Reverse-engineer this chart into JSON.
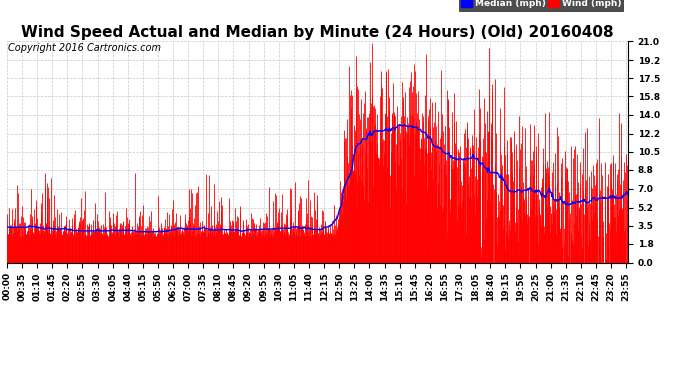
{
  "title": "Wind Speed Actual and Median by Minute (24 Hours) (Old) 20160408",
  "copyright": "Copyright 2016 Cartronics.com",
  "legend_median_label": "Median (mph)",
  "legend_wind_label": "Wind (mph)",
  "legend_median_color": "#0000ff",
  "legend_wind_color": "#ff0000",
  "wind_color": "#ff0000",
  "median_color": "#0000ff",
  "background_color": "#ffffff",
  "grid_color": "#c8c8c8",
  "title_fontsize": 11,
  "copyright_fontsize": 7,
  "ytick_labels": [
    "0.0",
    "1.8",
    "3.5",
    "5.2",
    "7.0",
    "8.8",
    "10.5",
    "12.2",
    "14.0",
    "15.8",
    "17.5",
    "19.2",
    "21.0"
  ],
  "ytick_values": [
    0.0,
    1.8,
    3.5,
    5.2,
    7.0,
    8.8,
    10.5,
    12.2,
    14.0,
    15.8,
    17.5,
    19.2,
    21.0
  ],
  "ymax": 21.0,
  "ymin": 0.0,
  "xlabel_rotation": 90,
  "tick_label_fontsize": 6.5
}
